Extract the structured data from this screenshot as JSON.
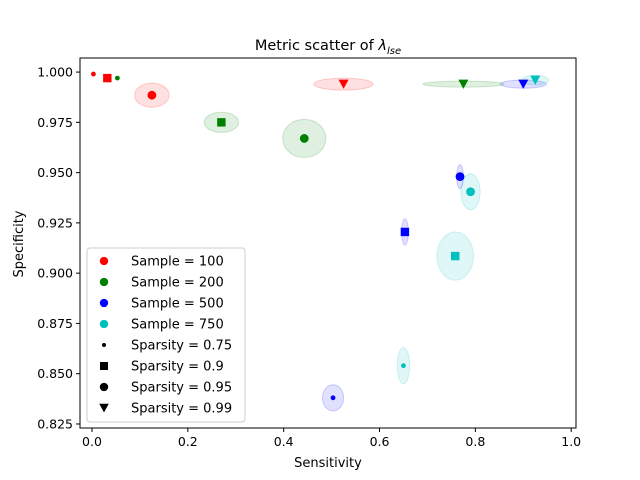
{
  "chart_data": {
    "type": "scatter",
    "title_main": "Metric scatter of ",
    "title_symbol": "λ",
    "title_subscript": "lse",
    "xlabel": "Sensitivity",
    "ylabel": "Specificity",
    "xlim": [
      -0.025,
      1.01
    ],
    "ylim": [
      0.823,
      1.007
    ],
    "xticks": [
      0.0,
      0.2,
      0.4,
      0.6,
      0.8,
      1.0
    ],
    "xtick_labels": [
      "0.0",
      "0.2",
      "0.4",
      "0.6",
      "0.8",
      "1.0"
    ],
    "yticks": [
      0.825,
      0.85,
      0.875,
      0.9,
      0.925,
      0.95,
      0.975,
      1.0
    ],
    "ytick_labels": [
      "0.825",
      "0.850",
      "0.875",
      "0.900",
      "0.925",
      "0.950",
      "0.975",
      "1.000"
    ],
    "grid": false,
    "legend_position": "lower-left",
    "sample_groups": [
      {
        "label": "Sample = 100",
        "sample": 100,
        "color": "#ff0000"
      },
      {
        "label": "Sample = 200",
        "sample": 200,
        "color": "#008000"
      },
      {
        "label": "Sample = 500",
        "sample": 500,
        "color": "#0000ff"
      },
      {
        "label": "Sample = 750",
        "sample": 750,
        "color": "#00bfbf"
      }
    ],
    "sparsity_groups": [
      {
        "label": "Sparsity = 0.75",
        "sparsity": 0.75,
        "marker": "point"
      },
      {
        "label": "Sparsity = 0.9",
        "sparsity": 0.9,
        "marker": "square"
      },
      {
        "label": "Sparsity = 0.95",
        "sparsity": 0.95,
        "marker": "circle"
      },
      {
        "label": "Sparsity = 0.99",
        "sparsity": 0.99,
        "marker": "triangle-down"
      }
    ],
    "points": [
      {
        "sample": 100,
        "sparsity": 0.75,
        "x": 0.003,
        "y": 0.999,
        "x_spread": 0.0,
        "y_spread": 0.0
      },
      {
        "sample": 100,
        "sparsity": 0.9,
        "x": 0.032,
        "y": 0.997,
        "x_spread": 0.0,
        "y_spread": 0.0
      },
      {
        "sample": 100,
        "sparsity": 0.95,
        "x": 0.125,
        "y": 0.9885,
        "x_spread": 0.036,
        "y_spread": 0.006
      },
      {
        "sample": 100,
        "sparsity": 0.99,
        "x": 0.525,
        "y": 0.994,
        "x_spread": 0.062,
        "y_spread": 0.003
      },
      {
        "sample": 200,
        "sparsity": 0.75,
        "x": 0.053,
        "y": 0.997,
        "x_spread": 0.0,
        "y_spread": 0.0
      },
      {
        "sample": 200,
        "sparsity": 0.9,
        "x": 0.27,
        "y": 0.975,
        "x_spread": 0.036,
        "y_spread": 0.005
      },
      {
        "sample": 200,
        "sparsity": 0.95,
        "x": 0.443,
        "y": 0.967,
        "x_spread": 0.045,
        "y_spread": 0.0095
      },
      {
        "sample": 200,
        "sparsity": 0.99,
        "x": 0.775,
        "y": 0.994,
        "x_spread": 0.085,
        "y_spread": 0.0015
      },
      {
        "sample": 500,
        "sparsity": 0.75,
        "x": 0.503,
        "y": 0.838,
        "x_spread": 0.022,
        "y_spread": 0.0065
      },
      {
        "sample": 500,
        "sparsity": 0.9,
        "x": 0.653,
        "y": 0.9205,
        "x_spread": 0.007,
        "y_spread": 0.0065
      },
      {
        "sample": 500,
        "sparsity": 0.95,
        "x": 0.768,
        "y": 0.948,
        "x_spread": 0.007,
        "y_spread": 0.006
      },
      {
        "sample": 500,
        "sparsity": 0.99,
        "x": 0.9,
        "y": 0.994,
        "x_spread": 0.048,
        "y_spread": 0.002
      },
      {
        "sample": 750,
        "sparsity": 0.75,
        "x": 0.65,
        "y": 0.854,
        "x_spread": 0.013,
        "y_spread": 0.009
      },
      {
        "sample": 750,
        "sparsity": 0.9,
        "x": 0.758,
        "y": 0.9085,
        "x_spread": 0.038,
        "y_spread": 0.012
      },
      {
        "sample": 750,
        "sparsity": 0.95,
        "x": 0.79,
        "y": 0.9405,
        "x_spread": 0.02,
        "y_spread": 0.009
      },
      {
        "sample": 750,
        "sparsity": 0.99,
        "x": 0.925,
        "y": 0.996,
        "x_spread": 0.028,
        "y_spread": 0.0025
      }
    ]
  }
}
